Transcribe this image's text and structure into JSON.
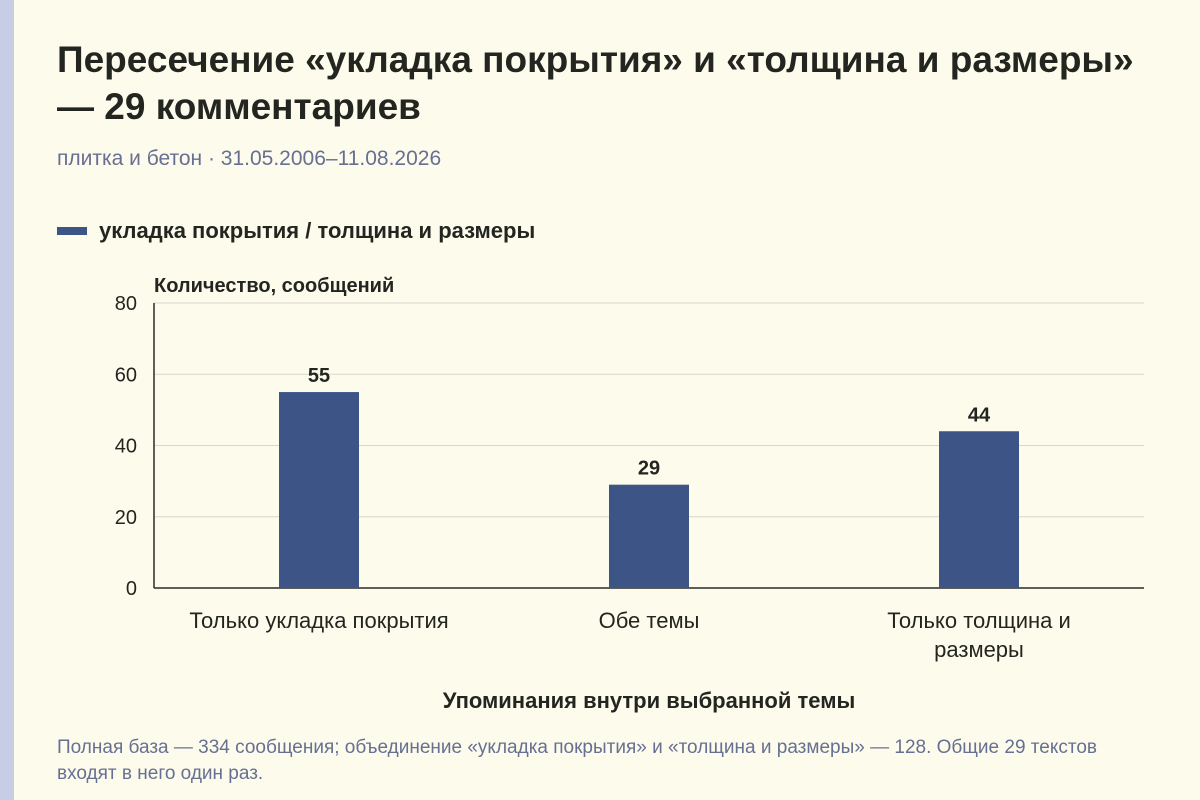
{
  "title": "Пересечение «укладка покрытия» и «толщина и размеры» — 29 комментариев",
  "subtitle": "плитка и бетон · 31.05.2006–11.08.2026",
  "note": "Полная база — 334 сообщения; объединение «укладка покрытия» и «толщина и размеры» — 128. Общие 29 текстов входят в него один раз.",
  "colors": {
    "bar": "#3d5586",
    "grid": "#d7d7cc",
    "axis": "#2a2a2a",
    "text": "#232520",
    "muted": "#667092",
    "background": "#fdfbec"
  },
  "chart_data": {
    "type": "bar",
    "categories": [
      "Только укладка покрытия",
      "Обе темы",
      "Только толщина и размеры"
    ],
    "category_lines": [
      [
        "Только укладка покрытия"
      ],
      [
        "Обе темы"
      ],
      [
        "Только толщина и",
        "размеры"
      ]
    ],
    "series": [
      {
        "name": "укладка покрытия / толщина и размеры",
        "values": [
          55,
          29,
          44
        ]
      }
    ],
    "data_labels": [
      "55",
      "29",
      "44"
    ],
    "ylabel": "Количество, сообщений",
    "xlabel": "Упоминания внутри выбранной темы",
    "ylim": [
      0,
      80
    ],
    "yticks": [
      0,
      20,
      40,
      60,
      80
    ],
    "grid": true,
    "legend_position": "top-left"
  }
}
